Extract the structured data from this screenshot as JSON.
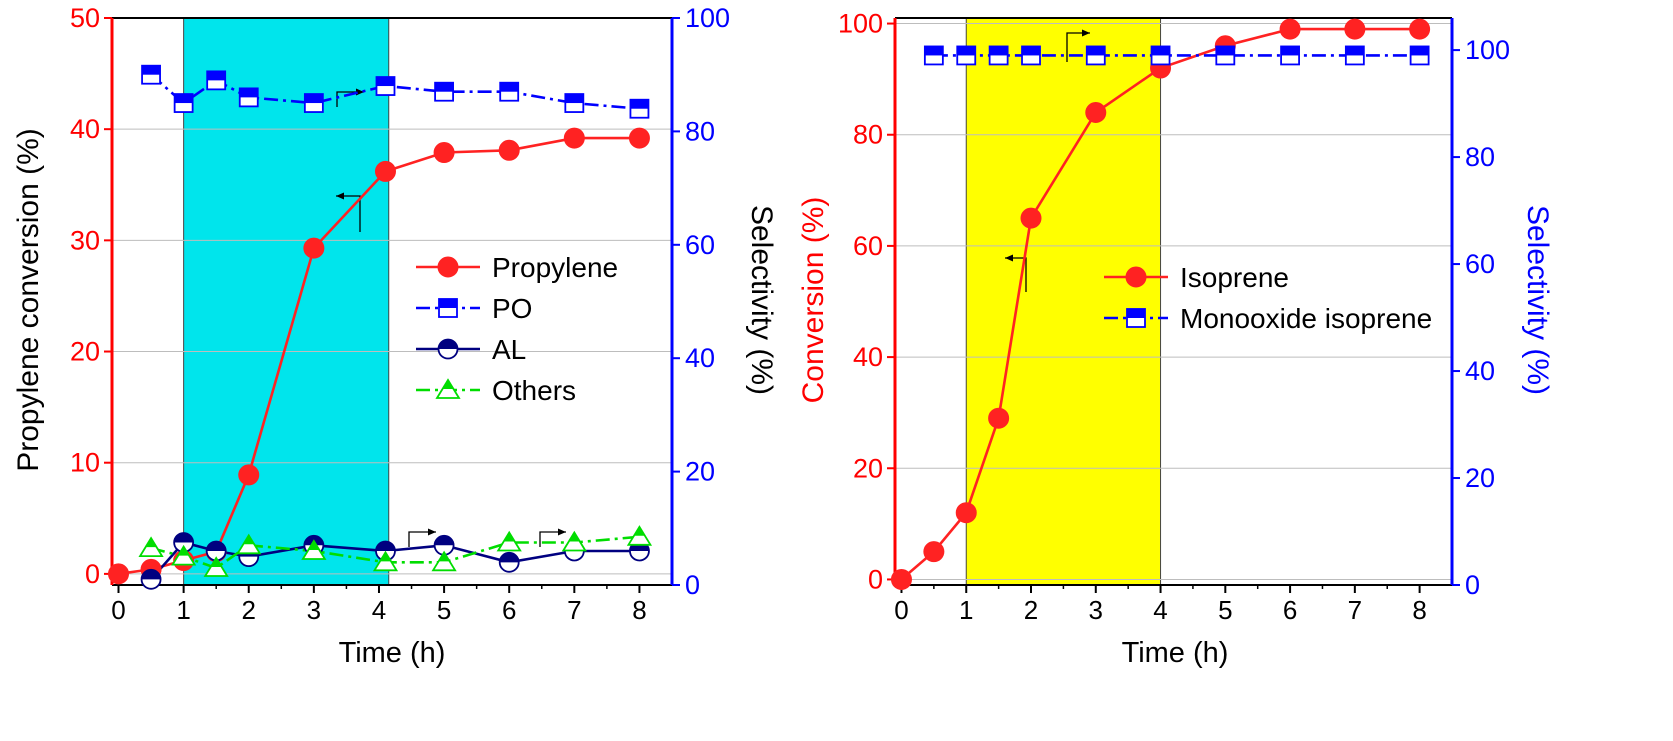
{
  "chart_data": [
    {
      "type": "line",
      "highlight_band": {
        "x_range": [
          1,
          4.15
        ],
        "color": "#00e5ec"
      },
      "xlabel": "Time (h)",
      "ylabel_left": "Propylene conversion (%)",
      "ylabel_right": "Selectivity (%)",
      "xlim": [
        -0.1,
        8.5
      ],
      "ylim_left": [
        -1,
        50
      ],
      "ylim_right": [
        0,
        100
      ],
      "x_ticks": [
        "0",
        "1",
        "2",
        "3",
        "4",
        "5",
        "6",
        "7",
        "8"
      ],
      "y_ticks_left": [
        "0",
        "10",
        "20",
        "30",
        "40",
        "50"
      ],
      "y_ticks_right": [
        "0",
        "20",
        "40",
        "60",
        "80",
        "100"
      ],
      "colors": {
        "left_axis": "#ff0000",
        "right_axis": "#0000ff"
      },
      "series": [
        {
          "name": "Propylene",
          "axis": "left",
          "color": "#ff2222",
          "marker": "filled-circle",
          "dash": "solid",
          "x": [
            0,
            0.5,
            1,
            1.5,
            2,
            3,
            4.1,
            5,
            6,
            7,
            8
          ],
          "y": [
            0,
            0.4,
            1.2,
            2.0,
            8.9,
            29.3,
            36.2,
            37.9,
            38.1,
            39.2,
            39.2
          ]
        },
        {
          "name": "PO",
          "axis": "right",
          "color": "#0000ff",
          "marker": "half-square",
          "dash": "dashdot",
          "x": [
            0.5,
            1,
            1.5,
            2,
            3,
            4.1,
            5,
            6,
            7,
            8
          ],
          "y": [
            90,
            85,
            89,
            86,
            85,
            88,
            87,
            87,
            85,
            84
          ]
        },
        {
          "name": "AL",
          "axis": "right",
          "color": "#000080",
          "marker": "half-circle",
          "dash": "solid",
          "x": [
            0.5,
            1,
            1.5,
            2,
            3,
            4.1,
            5,
            6,
            7,
            8
          ],
          "y": [
            1,
            7.5,
            6,
            5,
            7,
            6,
            7,
            4,
            6,
            6
          ]
        },
        {
          "name": "Others",
          "axis": "right",
          "color": "#00dd00",
          "marker": "half-triangle",
          "dash": "dashdot",
          "x": [
            0.5,
            1,
            1.5,
            2,
            3,
            4.1,
            5,
            6,
            7,
            8
          ],
          "y": [
            6.5,
            5,
            3,
            7,
            6,
            4,
            4,
            7.5,
            7.5,
            8.5
          ]
        }
      ],
      "legend": {
        "position": "center-right",
        "entries": [
          "Propylene",
          "PO",
          "AL",
          "Others"
        ]
      }
    },
    {
      "type": "line",
      "highlight_band": {
        "x_range": [
          1,
          4
        ],
        "color": "#ffff00"
      },
      "xlabel": "Time (h)",
      "ylabel_left": "Conversion (%)",
      "ylabel_right": "Selectivity (%)",
      "xlim": [
        -0.1,
        8.5
      ],
      "ylim_left": [
        -1,
        101
      ],
      "ylim_right": [
        0,
        106
      ],
      "x_ticks": [
        "0",
        "1",
        "2",
        "3",
        "4",
        "5",
        "6",
        "7",
        "8"
      ],
      "y_ticks_left": [
        "0",
        "20",
        "40",
        "60",
        "80",
        "100"
      ],
      "y_ticks_right": [
        "0",
        "20",
        "40",
        "60",
        "80",
        "100"
      ],
      "colors": {
        "left_axis": "#ff0000",
        "right_axis": "#0000ff"
      },
      "series": [
        {
          "name": "Isoprene",
          "axis": "left",
          "color": "#ff2222",
          "marker": "filled-circle",
          "dash": "solid",
          "x": [
            0,
            0.5,
            1,
            1.5,
            2,
            3,
            4,
            5,
            6,
            7,
            8
          ],
          "y": [
            0,
            5,
            12,
            29,
            65,
            84,
            92,
            96,
            99,
            99,
            99
          ]
        },
        {
          "name": "Monooxide isoprene",
          "axis": "right",
          "color": "#0000ff",
          "marker": "half-square",
          "dash": "dashdot",
          "x": [
            0.5,
            1,
            1.5,
            2,
            3,
            4,
            5,
            6,
            7,
            8
          ],
          "y": [
            99,
            99,
            99,
            99,
            99,
            99,
            99,
            99,
            99,
            99
          ]
        }
      ],
      "legend": {
        "position": "center-right",
        "entries": [
          "Isoprene",
          "Monooxide isoprene"
        ]
      }
    }
  ]
}
